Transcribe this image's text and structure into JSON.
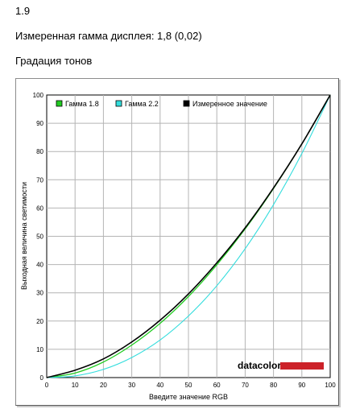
{
  "header": {
    "section_number": "1.9",
    "measured_gamma": "Измеренная гамма дисплея: 1,8 (0,02)",
    "tone_title": "Градация тонов"
  },
  "logo": {
    "text": "datacolor",
    "accent": "#cc2229"
  },
  "chart_data": {
    "type": "line",
    "title": "",
    "xlabel": "Введите значение RGB",
    "ylabel": "Выходная величина светимости",
    "xlim": [
      0,
      100
    ],
    "ylim": [
      0,
      100
    ],
    "xticks": [
      0,
      10,
      20,
      30,
      40,
      50,
      60,
      70,
      80,
      90,
      100
    ],
    "yticks": [
      0,
      10,
      20,
      30,
      40,
      50,
      60,
      70,
      80,
      90,
      100
    ],
    "grid": true,
    "legend_position": "top-left",
    "x": [
      0,
      10,
      20,
      30,
      40,
      50,
      60,
      70,
      80,
      90,
      100
    ],
    "series": [
      {
        "name": "Гамма 1.8",
        "color": "#22cc22",
        "values": [
          0,
          1.6,
          5.5,
          11.5,
          19.2,
          28.7,
          39.9,
          52.6,
          66.9,
          82.7,
          100
        ]
      },
      {
        "name": "Гамма 2.2",
        "color": "#33dddd",
        "values": [
          0,
          0.6,
          2.9,
          7.1,
          13.3,
          21.8,
          32.5,
          45.6,
          61.2,
          79.3,
          100
        ]
      },
      {
        "name": "Измеренное значение",
        "color": "#000000",
        "values": [
          0,
          2.6,
          6.6,
          12.6,
          20.3,
          29.6,
          40.6,
          53.0,
          67.1,
          82.7,
          100
        ]
      }
    ]
  }
}
